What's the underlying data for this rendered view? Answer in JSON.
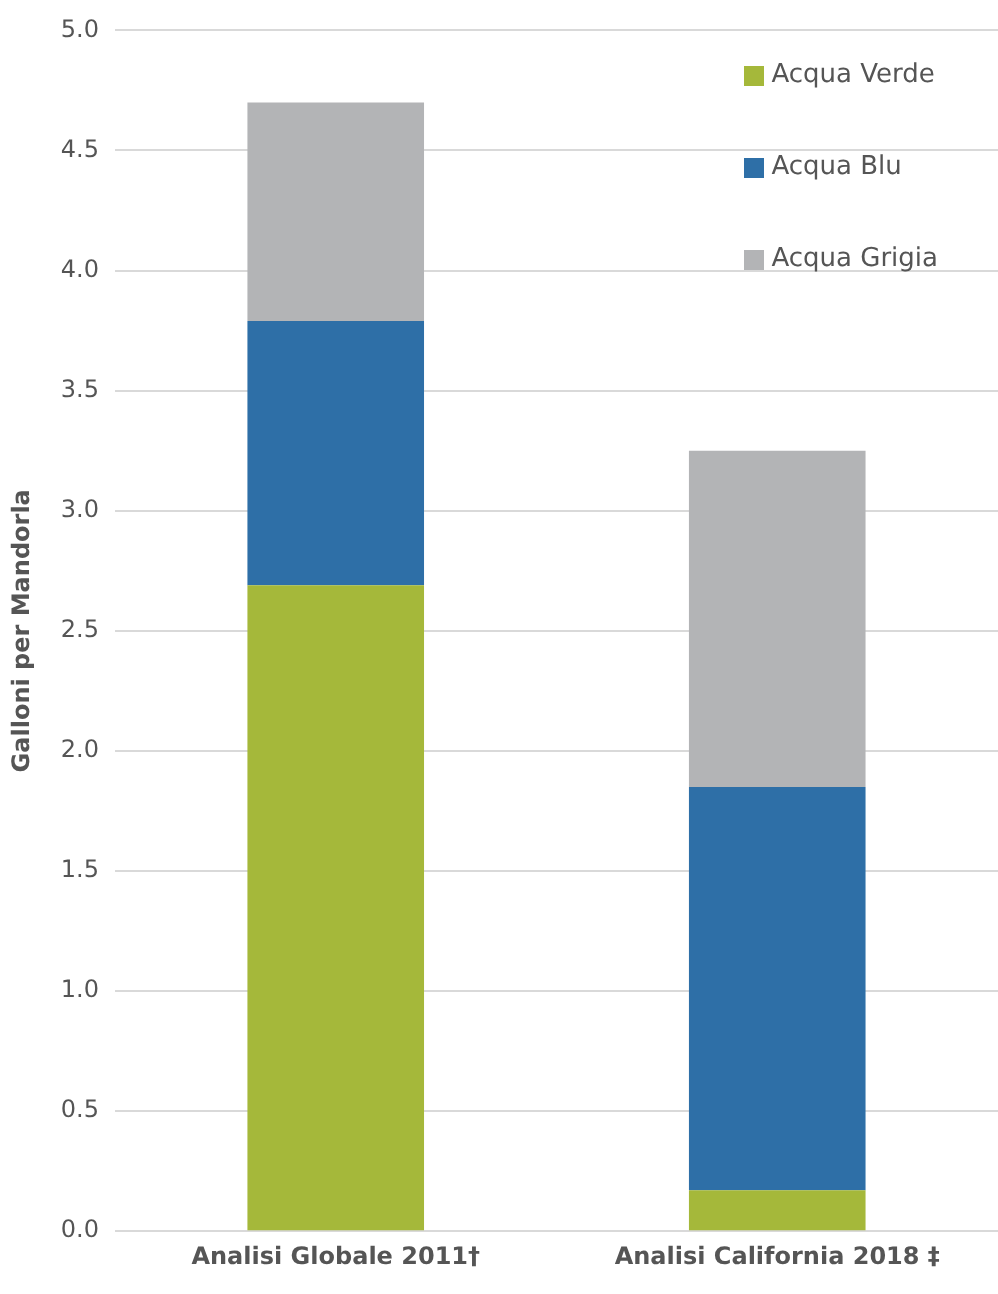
{
  "chart_data": {
    "type": "bar",
    "stacked": true,
    "ylabel": "Galloni per Mandorla",
    "categories": [
      "Analisi Globale 2011†",
      "Analisi California 2018 ‡"
    ],
    "series": [
      {
        "name": "Acqua Verde",
        "color": "#a5b83a",
        "values": [
          2.69,
          0.17
        ]
      },
      {
        "name": "Acqua Blu",
        "color": "#2e6fa7",
        "values": [
          1.1,
          1.68
        ]
      },
      {
        "name": "Acqua Grigia",
        "color": "#b3b4b6",
        "values": [
          0.91,
          1.4
        ]
      }
    ],
    "ylim": [
      0,
      5
    ],
    "yticks": [
      {
        "value": 0,
        "label": "0.0"
      },
      {
        "value": 0.5,
        "label": "0.5"
      },
      {
        "value": 1,
        "label": "1.0"
      },
      {
        "value": 1.5,
        "label": "1.5"
      },
      {
        "value": 2,
        "label": "2.0"
      },
      {
        "value": 2.5,
        "label": "2.5"
      },
      {
        "value": 3,
        "label": "3.0"
      },
      {
        "value": 3.5,
        "label": "3.5"
      },
      {
        "value": 4,
        "label": "4.0"
      },
      {
        "value": 4.5,
        "label": "4.5"
      },
      {
        "value": 5,
        "label": "5.0"
      }
    ],
    "grid": "y",
    "legend": "top right"
  }
}
